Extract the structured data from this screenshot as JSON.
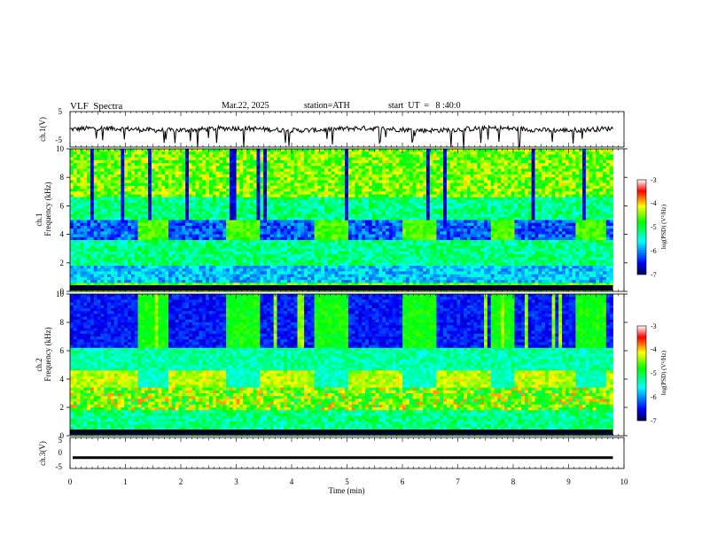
{
  "header": {
    "title": "VLF  Spectra",
    "date": "Mar.22, 2025",
    "station": "station=ATH",
    "start_ut": "start  UT  =   8 :40:0"
  },
  "chart_data": [
    {
      "type": "line",
      "title": "",
      "ylabel": "ch.1(V)",
      "ylim": [
        -5,
        5
      ],
      "yticks": [
        "5",
        "-5"
      ],
      "x_range": [
        0,
        10
      ],
      "line_color": "#000000",
      "trace_level_approx": 0,
      "note": "noisy baseline near 0 V with frequent downward spikes"
    },
    {
      "type": "heatmap",
      "ylabel": "Frequency (kHz)",
      "channel_label": "ch.1",
      "ylim": [
        0,
        10
      ],
      "yticks": [
        "0",
        "2",
        "4",
        "6",
        "8",
        "10"
      ],
      "x_range": [
        0,
        10
      ],
      "data_extent_min": 9.8,
      "colorbar": {
        "label": "log(PSD) (V²/Hz)",
        "range": [
          -7,
          -3
        ],
        "ticks": [
          "-3",
          "-4",
          "-5",
          "-6",
          "-7"
        ]
      },
      "transmitter_blocks_khz": [
        3.5,
        4.7
      ],
      "block_boundaries_min": [
        1.25,
        1.8,
        2.8,
        3.4,
        4.4,
        5.0,
        6.0,
        6.6,
        7.6,
        8.0,
        9.1,
        9.7
      ]
    },
    {
      "type": "heatmap",
      "ylabel": "Frequency (kHz)",
      "channel_label": "ch.2",
      "ylim": [
        0,
        10
      ],
      "yticks": [
        "0",
        "2",
        "4",
        "6",
        "8",
        "10"
      ],
      "x_range": [
        0,
        10
      ],
      "data_extent_min": 9.8,
      "colorbar": {
        "label": "log(PSD) (V²/Hz)",
        "range": [
          -7,
          -3
        ],
        "ticks": [
          "-3",
          "-4",
          "-5",
          "-6",
          "-7"
        ]
      },
      "transmitter_blocks_khz": [
        3.5,
        4.2
      ],
      "quiet_band_khz": [
        6.2,
        10
      ],
      "block_boundaries_min": [
        1.25,
        1.8,
        2.8,
        3.4,
        4.4,
        5.0,
        6.0,
        6.6,
        7.6,
        8.0,
        9.1,
        9.7
      ]
    },
    {
      "type": "line",
      "ylabel": "ch.3(V)",
      "ylim": [
        -5,
        5
      ],
      "yticks": [
        "5",
        "0",
        "-5"
      ],
      "x_range": [
        0,
        10
      ],
      "trace_level_approx": -1.5,
      "xlabel": "Time  (min)",
      "xticks": [
        "0",
        "1",
        "2",
        "3",
        "4",
        "5",
        "6",
        "7",
        "8",
        "9",
        "10"
      ]
    }
  ]
}
